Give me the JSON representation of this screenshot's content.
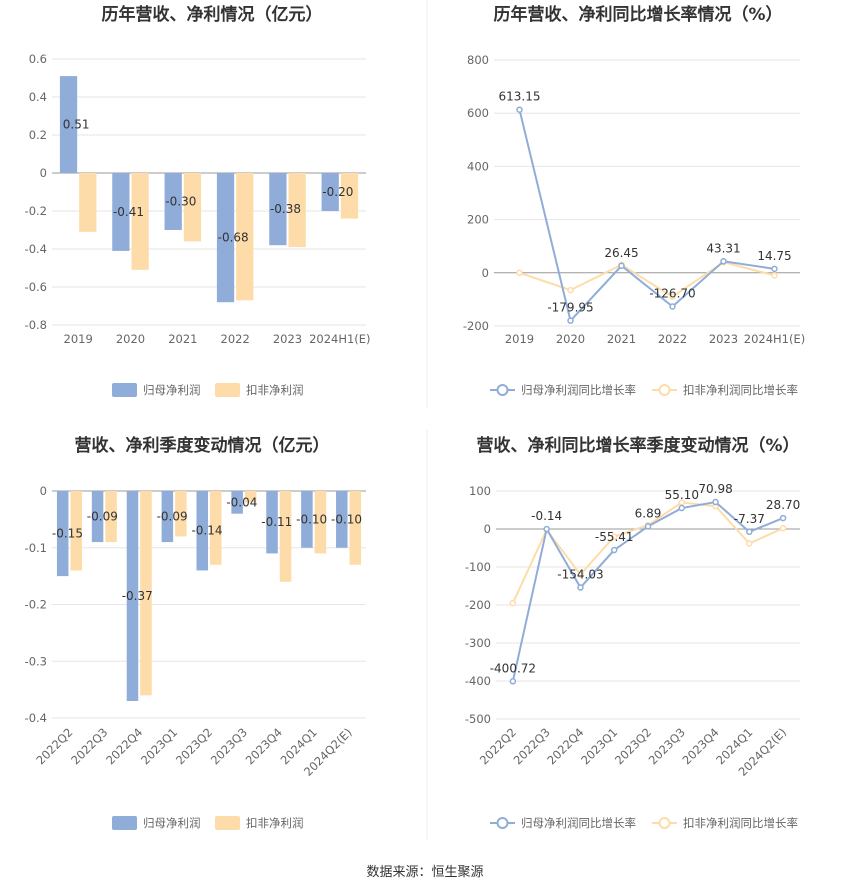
{
  "source": "数据来源：恒生聚源",
  "colors": {
    "primary": "#8fadd8",
    "secondary": "#fedca9"
  },
  "chart_data": [
    {
      "type": "bar",
      "title": "历年营收、净利情况（亿元）",
      "categories": [
        "2019",
        "2020",
        "2021",
        "2022",
        "2023",
        "2024H1(E)"
      ],
      "series": [
        {
          "name": "归母净利润",
          "values": [
            0.51,
            -0.41,
            -0.3,
            -0.68,
            -0.38,
            -0.2
          ],
          "labels": [
            "0.51",
            "-0.41",
            "-0.30",
            "-0.68",
            "-0.38",
            "-0.20"
          ]
        },
        {
          "name": "扣非净利润",
          "values": [
            -0.31,
            -0.51,
            -0.36,
            -0.67,
            -0.39,
            -0.24
          ]
        }
      ],
      "yticks": [
        "0.6",
        "0.4",
        "0.2",
        "0",
        "-0.2",
        "-0.4",
        "-0.6",
        "-0.8"
      ],
      "ylim": [
        -0.8,
        0.6
      ],
      "legend": "bottom"
    },
    {
      "type": "line",
      "title": "历年营收、净利同比增长率情况（%）",
      "categories": [
        "2019",
        "2020",
        "2021",
        "2022",
        "2023",
        "2024H1(E)"
      ],
      "series": [
        {
          "name": "归母净利润同比增长率",
          "values": [
            613.15,
            -179.95,
            26.45,
            -126.7,
            43.31,
            14.75
          ],
          "labels": [
            "613.15",
            "-179.95",
            "26.45",
            "-126.70",
            "43.31",
            "14.75"
          ]
        },
        {
          "name": "扣非净利润同比增长率",
          "values": [
            0,
            -65,
            30,
            -90,
            40,
            -10
          ]
        }
      ],
      "yticks": [
        "800",
        "600",
        "400",
        "200",
        "0",
        "-200"
      ],
      "ylim": [
        -200,
        800
      ],
      "legend": "bottom"
    },
    {
      "type": "bar",
      "title": "营收、净利季度变动情况（亿元）",
      "categories": [
        "2022Q2",
        "2022Q3",
        "2022Q4",
        "2023Q1",
        "2023Q2",
        "2023Q3",
        "2023Q4",
        "2024Q1",
        "2024Q2(E)"
      ],
      "series": [
        {
          "name": "归母净利润",
          "values": [
            -0.15,
            -0.09,
            -0.37,
            -0.09,
            -0.14,
            -0.04,
            -0.11,
            -0.1,
            -0.1
          ],
          "labels": [
            "-0.15",
            "-0.09",
            "-0.37",
            "-0.09",
            "-0.14",
            "-0.04",
            "-0.11",
            "-0.10",
            "-0.10"
          ]
        },
        {
          "name": "扣非净利润",
          "values": [
            -0.14,
            -0.09,
            -0.36,
            -0.08,
            -0.13,
            -0.02,
            -0.16,
            -0.11,
            -0.13
          ]
        }
      ],
      "yticks": [
        "0",
        "-0.1",
        "-0.2",
        "-0.3",
        "-0.4"
      ],
      "ylim": [
        -0.4,
        0
      ],
      "legend": "bottom"
    },
    {
      "type": "line",
      "title": "营收、净利同比增长率季度变动情况（%）",
      "categories": [
        "2022Q2",
        "2022Q3",
        "2022Q4",
        "2023Q1",
        "2023Q2",
        "2023Q3",
        "2023Q4",
        "2024Q1",
        "2024Q2(E)"
      ],
      "series": [
        {
          "name": "归母净利润同比增长率",
          "values": [
            -400.72,
            -0.14,
            -154.03,
            -55.41,
            6.89,
            55.1,
            70.98,
            -7.37,
            28.7
          ],
          "labels": [
            "-400.72",
            "-0.14",
            "-154.03",
            "-55.41",
            "6.89",
            "55.10",
            "70.98",
            "-7.37",
            "28.70"
          ]
        },
        {
          "name": "扣非净利润同比增长率",
          "values": [
            -195,
            -2,
            -120,
            -20,
            10,
            70,
            60,
            -38,
            2
          ]
        }
      ],
      "yticks": [
        "100",
        "0",
        "-100",
        "-200",
        "-300",
        "-400",
        "-500"
      ],
      "ylim": [
        -500,
        100
      ],
      "legend": "bottom"
    }
  ]
}
